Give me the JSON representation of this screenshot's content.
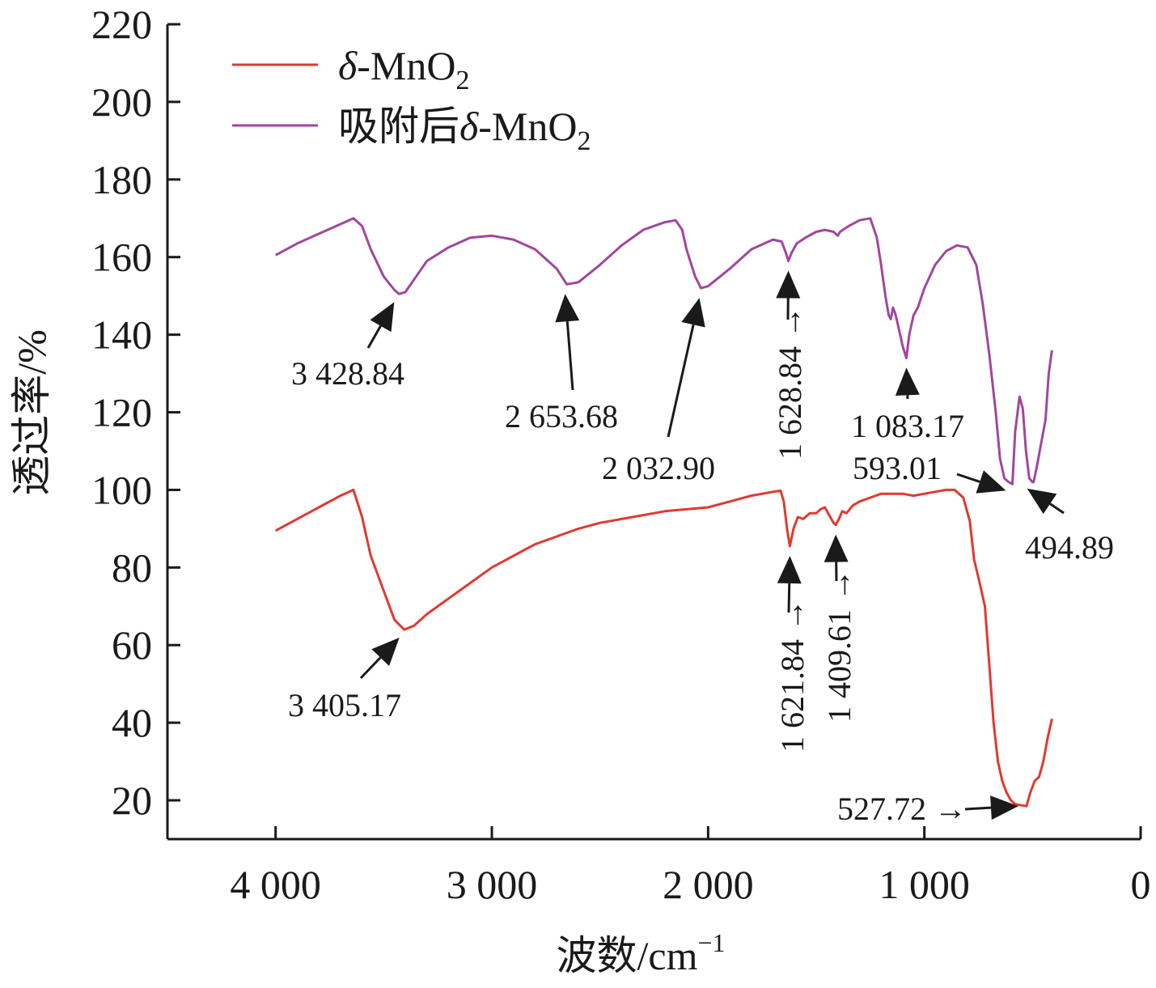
{
  "chart_data": {
    "type": "line",
    "xlabel": "波数/cm",
    "xlabel_sup": "−1",
    "ylabel": "透过率/%",
    "xlim": [
      4500,
      0
    ],
    "ylim": [
      10,
      220
    ],
    "x_reversed": true,
    "grid": false,
    "legend_position": "top-left",
    "x_ticks": [
      {
        "value": 4000,
        "label": "4 000"
      },
      {
        "value": 3000,
        "label": "3 000"
      },
      {
        "value": 2000,
        "label": "2 000"
      },
      {
        "value": 1000,
        "label": "1 000"
      },
      {
        "value": 0,
        "label": "0"
      }
    ],
    "y_ticks": [
      {
        "value": 20,
        "label": "20"
      },
      {
        "value": 40,
        "label": "40"
      },
      {
        "value": 60,
        "label": "60"
      },
      {
        "value": 80,
        "label": "80"
      },
      {
        "value": 100,
        "label": "100"
      },
      {
        "value": 120,
        "label": "120"
      },
      {
        "value": 140,
        "label": "140"
      },
      {
        "value": 160,
        "label": "160"
      },
      {
        "value": 180,
        "label": "180"
      },
      {
        "value": 200,
        "label": "200"
      },
      {
        "value": 220,
        "label": "220"
      }
    ],
    "series": [
      {
        "id": "mno2",
        "legend_prefix": "",
        "legend_symbol": "δ",
        "legend_body": "-MnO",
        "legend_sub": "2",
        "color": "#e03a2f",
        "points": [
          [
            4000,
            89.5
          ],
          [
            3900,
            92.5
          ],
          [
            3800,
            95.5
          ],
          [
            3700,
            98.5
          ],
          [
            3640,
            100.0
          ],
          [
            3600,
            93
          ],
          [
            3560,
            83
          ],
          [
            3500,
            74
          ],
          [
            3450,
            66.5
          ],
          [
            3405.17,
            64
          ],
          [
            3360,
            65
          ],
          [
            3300,
            68
          ],
          [
            3200,
            72
          ],
          [
            3100,
            76
          ],
          [
            3000,
            80
          ],
          [
            2900,
            83
          ],
          [
            2800,
            86
          ],
          [
            2700,
            88
          ],
          [
            2600,
            90
          ],
          [
            2500,
            91.5
          ],
          [
            2400,
            92.5
          ],
          [
            2300,
            93.5
          ],
          [
            2200,
            94.5
          ],
          [
            2100,
            95
          ],
          [
            2000,
            95.5
          ],
          [
            1900,
            97
          ],
          [
            1800,
            98.5
          ],
          [
            1700,
            99.5
          ],
          [
            1665,
            99.8
          ],
          [
            1650,
            97
          ],
          [
            1635,
            90
          ],
          [
            1621.84,
            85.5
          ],
          [
            1605,
            90
          ],
          [
            1585,
            93
          ],
          [
            1560,
            92.5
          ],
          [
            1530,
            94
          ],
          [
            1500,
            94
          ],
          [
            1480,
            95
          ],
          [
            1460,
            95.5
          ],
          [
            1440,
            93.5
          ],
          [
            1420,
            91.5
          ],
          [
            1409.61,
            91
          ],
          [
            1395,
            92.5
          ],
          [
            1380,
            94.5
          ],
          [
            1360,
            94
          ],
          [
            1330,
            96
          ],
          [
            1300,
            97
          ],
          [
            1250,
            98
          ],
          [
            1200,
            99
          ],
          [
            1100,
            99
          ],
          [
            1050,
            98.5
          ],
          [
            1000,
            99
          ],
          [
            950,
            99.5
          ],
          [
            900,
            100
          ],
          [
            860,
            100
          ],
          [
            820,
            98
          ],
          [
            790,
            92
          ],
          [
            770,
            82
          ],
          [
            740,
            75
          ],
          [
            720,
            70
          ],
          [
            700,
            55
          ],
          [
            680,
            40
          ],
          [
            660,
            30
          ],
          [
            640,
            25
          ],
          [
            620,
            22
          ],
          [
            600,
            20
          ],
          [
            580,
            19
          ],
          [
            560,
            18.8
          ],
          [
            527.72,
            18.5
          ],
          [
            510,
            22
          ],
          [
            490,
            25
          ],
          [
            470,
            26
          ],
          [
            450,
            30
          ],
          [
            430,
            36
          ],
          [
            410,
            41
          ]
        ]
      },
      {
        "id": "mno2-after",
        "legend_prefix": "吸附后",
        "legend_symbol": "δ",
        "legend_body": "-MnO",
        "legend_sub": "2",
        "color": "#a0479e",
        "points": [
          [
            4000,
            160.5
          ],
          [
            3900,
            163.5
          ],
          [
            3800,
            166
          ],
          [
            3700,
            168.5
          ],
          [
            3640,
            170
          ],
          [
            3600,
            168
          ],
          [
            3560,
            162
          ],
          [
            3500,
            155
          ],
          [
            3450,
            151.5
          ],
          [
            3428.84,
            150.5
          ],
          [
            3400,
            151
          ],
          [
            3350,
            155
          ],
          [
            3300,
            159
          ],
          [
            3200,
            162.5
          ],
          [
            3100,
            165
          ],
          [
            3000,
            165.5
          ],
          [
            2900,
            164.5
          ],
          [
            2800,
            162
          ],
          [
            2700,
            157
          ],
          [
            2653.68,
            153
          ],
          [
            2600,
            153.5
          ],
          [
            2500,
            158
          ],
          [
            2400,
            163
          ],
          [
            2300,
            167
          ],
          [
            2200,
            169
          ],
          [
            2150,
            169.5
          ],
          [
            2120,
            167
          ],
          [
            2100,
            162
          ],
          [
            2060,
            155
          ],
          [
            2032.9,
            152
          ],
          [
            2000,
            152.5
          ],
          [
            1900,
            157
          ],
          [
            1800,
            162
          ],
          [
            1700,
            164.5
          ],
          [
            1660,
            164
          ],
          [
            1640,
            161
          ],
          [
            1628.84,
            159
          ],
          [
            1615,
            161
          ],
          [
            1590,
            163.5
          ],
          [
            1550,
            165
          ],
          [
            1500,
            166.5
          ],
          [
            1460,
            167
          ],
          [
            1420,
            166.5
          ],
          [
            1400,
            165.5
          ],
          [
            1390,
            166.5
          ],
          [
            1350,
            168
          ],
          [
            1300,
            169.5
          ],
          [
            1250,
            170
          ],
          [
            1220,
            165
          ],
          [
            1200,
            158
          ],
          [
            1180,
            150
          ],
          [
            1165,
            145
          ],
          [
            1155,
            144
          ],
          [
            1145,
            147
          ],
          [
            1135,
            145.5
          ],
          [
            1120,
            142
          ],
          [
            1100,
            137
          ],
          [
            1083.17,
            134
          ],
          [
            1070,
            140
          ],
          [
            1050,
            145
          ],
          [
            1030,
            147
          ],
          [
            1000,
            152
          ],
          [
            950,
            158
          ],
          [
            900,
            161.5
          ],
          [
            850,
            163
          ],
          [
            800,
            162.5
          ],
          [
            760,
            158
          ],
          [
            730,
            148
          ],
          [
            700,
            135
          ],
          [
            670,
            120
          ],
          [
            650,
            108
          ],
          [
            630,
            103
          ],
          [
            610,
            102
          ],
          [
            593.01,
            101.5
          ],
          [
            580,
            115
          ],
          [
            560,
            124
          ],
          [
            545,
            121
          ],
          [
            530,
            110
          ],
          [
            515,
            103
          ],
          [
            500,
            102
          ],
          [
            494.89,
            102
          ],
          [
            480,
            106
          ],
          [
            460,
            112
          ],
          [
            440,
            118
          ],
          [
            425,
            130
          ],
          [
            410,
            136
          ]
        ]
      }
    ],
    "annotations": [
      {
        "label": "3 428.84",
        "series": "mno2-after",
        "x": 3428.84,
        "y": 150.5
      },
      {
        "label": "2 653.68",
        "series": "mno2-after",
        "x": 2653.68,
        "y": 153
      },
      {
        "label": "2 032.90",
        "series": "mno2-after",
        "x": 2032.9,
        "y": 152
      },
      {
        "label": "1 628.84",
        "series": "mno2-after",
        "x": 1628.84,
        "y": 159
      },
      {
        "label": "1 083.17",
        "series": "mno2-after",
        "x": 1083.17,
        "y": 134
      },
      {
        "label": "593.01",
        "series": "mno2-after",
        "x": 593.01,
        "y": 101.5
      },
      {
        "label": "494.89",
        "series": "mno2-after",
        "x": 494.89,
        "y": 102
      },
      {
        "label": "3 405.17",
        "series": "mno2",
        "x": 3405.17,
        "y": 64
      },
      {
        "label": "1 621.84",
        "series": "mno2",
        "x": 1621.84,
        "y": 85.5
      },
      {
        "label": "1 409.61",
        "series": "mno2",
        "x": 1409.61,
        "y": 91
      },
      {
        "label": "527.72",
        "series": "mno2",
        "x": 527.72,
        "y": 18.5
      }
    ]
  }
}
